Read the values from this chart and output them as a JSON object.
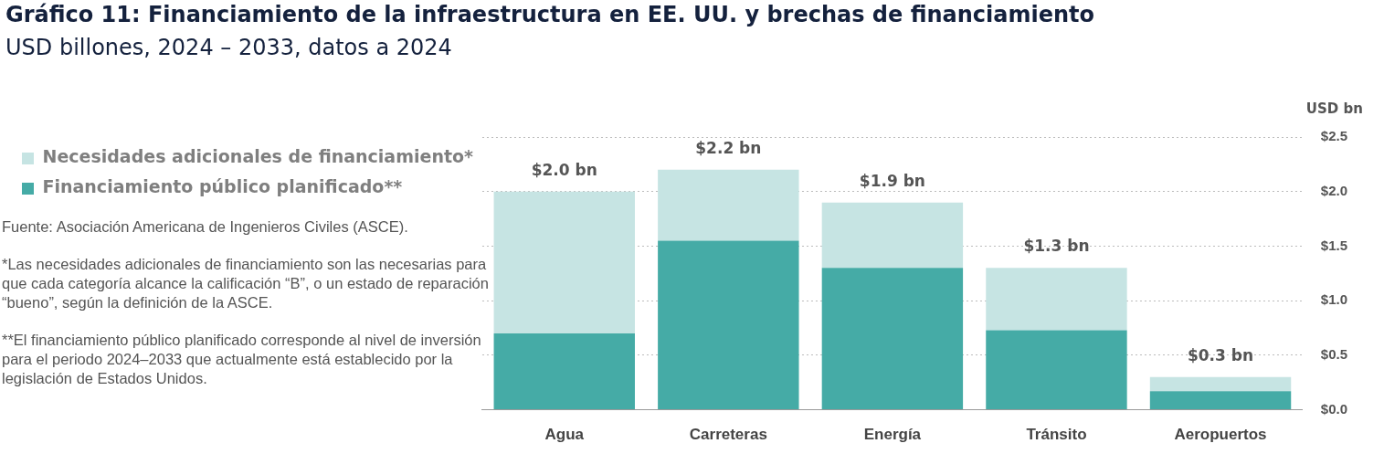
{
  "chart_data": {
    "type": "bar",
    "title": "Gráfico 11: Financiamiento de la infraestructura en EE. UU. y brechas de financiamiento",
    "subtitle": "USD billones, 2024 – 2033, datos a 2024",
    "ylabel": "USD bn",
    "categories": [
      "Agua",
      "Carreteras",
      "Energía",
      "Tránsito",
      "Aeropuertos"
    ],
    "series": [
      {
        "name": "Financiamiento público planificado**",
        "color": "#45aba6",
        "values": [
          0.7,
          1.55,
          1.3,
          0.73,
          0.17
        ]
      },
      {
        "name": "Necesidades adicionales de financiamiento*",
        "color": "#c6e4e3",
        "values": [
          1.3,
          0.65,
          0.6,
          0.57,
          0.13
        ]
      }
    ],
    "stacked": true,
    "totals": [
      "$2.0 bn",
      "$2.2 bn",
      "$1.9 bn",
      "$1.3 bn",
      "$0.3 bn"
    ],
    "ylim": [
      0,
      2.5
    ],
    "yticks": [
      {
        "value": 0,
        "label": "$0.0"
      },
      {
        "value": 0.5,
        "label": "$0.5"
      },
      {
        "value": 1,
        "label": "$1.0"
      },
      {
        "value": 1.5,
        "label": "$1.5"
      },
      {
        "value": 2,
        "label": "$2.0"
      },
      {
        "value": 2.5,
        "label": "$2.5"
      }
    ],
    "grid": "y",
    "legend": "top left",
    "annotations": [
      "Fuente: Asociación Americana de Ingenieros Civiles (ASCE).",
      "*Las necesidades adicionales de financiamiento son las necesarias para que cada categoría alcance la calificación “B”, o un estado de reparación “bueno”, según la definición de la ASCE.",
      "**El financiamiento público planificado corresponde al nivel de inversión para el periodo 2024–2033 que actualmente está establecido por la legislación de Estados Unidos."
    ]
  }
}
